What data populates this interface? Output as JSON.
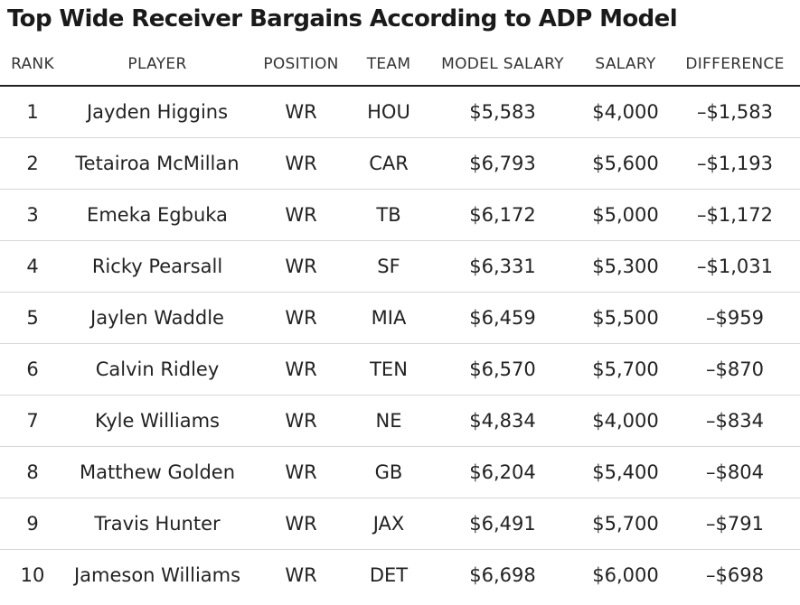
{
  "title": "Top Wide Receiver Bargains According to ADP Model",
  "chart_data": {
    "type": "table",
    "columns": [
      "RANK",
      "PLAYER",
      "POSITION",
      "TEAM",
      "MODEL SALARY",
      "SALARY",
      "DIFFERENCE"
    ],
    "rows": [
      [
        "1",
        "Jayden Higgins",
        "WR",
        "HOU",
        "$5,583",
        "$4,000",
        "–$1,583"
      ],
      [
        "2",
        "Tetairoa McMillan",
        "WR",
        "CAR",
        "$6,793",
        "$5,600",
        "–$1,193"
      ],
      [
        "3",
        "Emeka Egbuka",
        "WR",
        "TB",
        "$6,172",
        "$5,000",
        "–$1,172"
      ],
      [
        "4",
        "Ricky Pearsall",
        "WR",
        "SF",
        "$6,331",
        "$5,300",
        "–$1,031"
      ],
      [
        "5",
        "Jaylen Waddle",
        "WR",
        "MIA",
        "$6,459",
        "$5,500",
        "–$959"
      ],
      [
        "6",
        "Calvin Ridley",
        "WR",
        "TEN",
        "$6,570",
        "$5,700",
        "–$870"
      ],
      [
        "7",
        "Kyle Williams",
        "WR",
        "NE",
        "$4,834",
        "$4,000",
        "–$834"
      ],
      [
        "8",
        "Matthew Golden",
        "WR",
        "GB",
        "$6,204",
        "$5,400",
        "–$804"
      ],
      [
        "9",
        "Travis Hunter",
        "WR",
        "JAX",
        "$6,491",
        "$5,700",
        "–$791"
      ],
      [
        "10",
        "Jameson Williams",
        "WR",
        "DET",
        "$6,698",
        "$6,000",
        "–$698"
      ]
    ]
  }
}
